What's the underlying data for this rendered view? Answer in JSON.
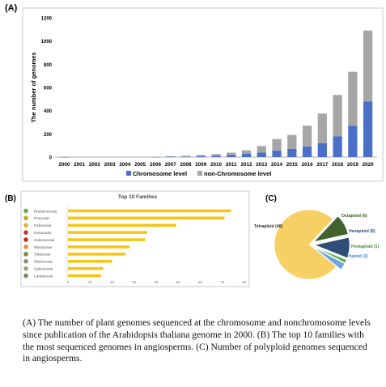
{
  "chart_data": [
    {
      "panel_label": "(A)",
      "type": "bar",
      "stacked": true,
      "ylabel": "The number of genomes",
      "xlabel": "",
      "ylim": [
        0,
        1200
      ],
      "yticks": [
        0,
        200,
        400,
        600,
        800,
        1000,
        1200
      ],
      "grid": false,
      "legend_position": "bottom",
      "categories": [
        "2000",
        "2001",
        "2002",
        "2003",
        "2004",
        "2005",
        "2006",
        "2007",
        "2008",
        "2009",
        "2010",
        "2011",
        "2012",
        "2013",
        "2014",
        "2015",
        "2016",
        "2017",
        "2018",
        "2019",
        "2020"
      ],
      "series": [
        {
          "name": "Chromosome level",
          "color": "#4a6fc9",
          "values": [
            1,
            0,
            0,
            0,
            0,
            0,
            2,
            3,
            5,
            8,
            12,
            18,
            28,
            40,
            55,
            70,
            90,
            120,
            180,
            270,
            480
          ]
        },
        {
          "name": "non-Chromosome level",
          "color": "#a6a6a6",
          "values": [
            0,
            0,
            0,
            0,
            0,
            0,
            2,
            4,
            6,
            10,
            14,
            20,
            30,
            55,
            100,
            120,
            180,
            255,
            355,
            465,
            610
          ]
        }
      ]
    },
    {
      "panel_label": "(B)",
      "type": "bar",
      "orientation": "horizontal",
      "title": "Top 10 Families",
      "color": "#f5c518",
      "xlim": [
        0,
        80
      ],
      "xticks": [
        0,
        10,
        20,
        30,
        40,
        50,
        60,
        70,
        80
      ],
      "grid": false,
      "categories": [
        "Brassicaceae",
        "Poaceae",
        "Fabaceae",
        "Rosaceae",
        "Solanaceae",
        "Myrtaceae",
        "Oleaceae",
        "Malvaceae",
        "Salicaceae",
        "Lamiaceae"
      ],
      "values": [
        74,
        71,
        49,
        36,
        35,
        28,
        26,
        20,
        16,
        15
      ]
    },
    {
      "panel_label": "(C)",
      "type": "pie",
      "labels": [
        "Tetraploid (48)",
        "Octaploid (6)",
        "Hexaploid (6)",
        "Pentaploid (1)",
        "Triploid (2)"
      ],
      "values": [
        48,
        6,
        6,
        1,
        2
      ],
      "colors": [
        "#f7d065",
        "#41622e",
        "#2e4e78",
        "#5fb04a",
        "#6fa6e0"
      ],
      "label_colors": [
        "#333333",
        "#2f5e1a",
        "#2a4b7a",
        "#3e8e2a",
        "#3f7fd0"
      ]
    }
  ],
  "caption": "(A) The number of plant genomes sequenced at the chromosome and nonchromosome levels since publication of the Arabidopsis thaliana genome in 2000. (B) The top 10 families with the most sequenced genomes in angiosperms. (C) Number of polyploid genomes sequenced in angiosperms."
}
